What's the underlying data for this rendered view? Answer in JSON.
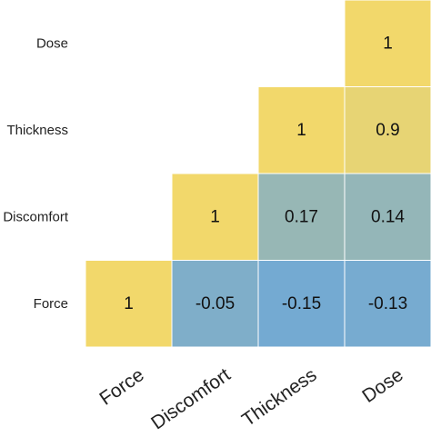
{
  "chart_data": {
    "type": "heatmap",
    "layout": "lower-triangle",
    "title": "",
    "xlabel": "",
    "ylabel": "",
    "x_categories": [
      "Force",
      "Discomfort",
      "Thickness",
      "Dose"
    ],
    "y_categories_top_to_bottom": [
      "Dose",
      "Thickness",
      "Discomfort",
      "Force"
    ],
    "cells": [
      {
        "row": "Dose",
        "col": "Dose",
        "value": 1,
        "label": "1"
      },
      {
        "row": "Thickness",
        "col": "Thickness",
        "value": 1,
        "label": "1"
      },
      {
        "row": "Thickness",
        "col": "Dose",
        "value": 0.9,
        "label": "0.9"
      },
      {
        "row": "Discomfort",
        "col": "Discomfort",
        "value": 1,
        "label": "1"
      },
      {
        "row": "Discomfort",
        "col": "Thickness",
        "value": 0.17,
        "label": "0.17"
      },
      {
        "row": "Discomfort",
        "col": "Dose",
        "value": 0.14,
        "label": "0.14"
      },
      {
        "row": "Force",
        "col": "Force",
        "value": 1,
        "label": "1"
      },
      {
        "row": "Force",
        "col": "Discomfort",
        "value": -0.05,
        "label": "-0.05"
      },
      {
        "row": "Force",
        "col": "Thickness",
        "value": -0.15,
        "label": "-0.15"
      },
      {
        "row": "Force",
        "col": "Dose",
        "value": -0.13,
        "label": "-0.13"
      }
    ],
    "color_scale": {
      "low": "#6fa8d6",
      "high": "#f2d86b",
      "domain": [
        -0.2,
        1
      ]
    }
  }
}
